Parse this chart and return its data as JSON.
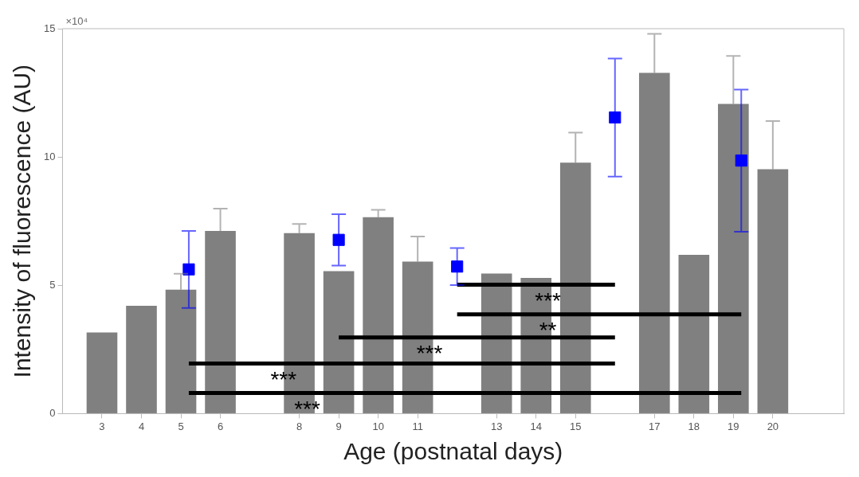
{
  "chart_data": {
    "type": "bar",
    "xlabel": "Age (postnatal days)",
    "ylabel": "Intensity of fluorescence (AU)",
    "xlim": [
      2,
      21.8
    ],
    "xticks": [
      3,
      4,
      5,
      6,
      8,
      9,
      10,
      11,
      13,
      14,
      15,
      17,
      18,
      19,
      20
    ],
    "ylim": [
      0,
      15
    ],
    "yticks": [
      0,
      5,
      10,
      15
    ],
    "legend": false,
    "series": [
      {
        "color": "#808080",
        "x": [
          3,
          4,
          5,
          6,
          8,
          9,
          10,
          11,
          13,
          14,
          15,
          17,
          18,
          19,
          20
        ],
        "values": [
          3.16,
          4.2,
          4.83,
          7.12,
          7.03,
          5.55,
          7.65,
          5.92,
          5.46,
          5.29,
          9.78,
          13.28,
          6.19,
          12.07,
          9.52
        ],
        "errors": [
          null,
          null,
          [
            4.83,
            5.45
          ],
          [
            7.12,
            7.99
          ],
          [
            7.03,
            7.39
          ],
          null,
          [
            7.65,
            7.94
          ],
          [
            5.92,
            6.9
          ],
          null,
          null,
          [
            9.78,
            10.95
          ],
          [
            13.28,
            14.8
          ],
          null,
          [
            12.07,
            13.94
          ],
          [
            9.52,
            11.4
          ]
        ]
      },
      {
        "type": "scatter",
        "color": "#0000ff",
        "marker": "square",
        "x": [
          5.2,
          9,
          12,
          16,
          19.2
        ],
        "values": [
          5.62,
          6.77,
          5.73,
          11.54,
          9.86
        ],
        "errors": [
          1.5,
          1.0,
          0.72,
          2.3,
          2.77
        ]
      },
      {
        "type": "line",
        "color": "#000000",
        "x": [
          5.2,
          19.2
        ],
        "values": [
          0.8,
          0.8
        ]
      },
      {
        "type": "line",
        "color": "#000000",
        "x": [
          5.2,
          16
        ],
        "values": [
          1.95,
          1.95
        ]
      },
      {
        "type": "line",
        "color": "#000000",
        "x": [
          9,
          16
        ],
        "values": [
          2.97,
          2.97
        ]
      },
      {
        "type": "line",
        "color": "#000000",
        "x": [
          12,
          19.2
        ],
        "values": [
          3.87,
          3.87
        ]
      },
      {
        "type": "line",
        "color": "#000000",
        "x": [
          12,
          16
        ],
        "values": [
          5.02,
          5.02
        ]
      }
    ],
    "annotations": [
      "×10⁴",
      {
        "text": "***",
        "x": 7.6,
        "y": 1.95
      },
      {
        "text": "***",
        "x": 8.2,
        "y": 0.8
      },
      {
        "text": "***",
        "x": 11.3,
        "y": 2.97
      },
      {
        "text": "**",
        "x": 14.3,
        "y": 3.87
      },
      {
        "text": "***",
        "x": 14.3,
        "y": 5.02
      }
    ]
  }
}
